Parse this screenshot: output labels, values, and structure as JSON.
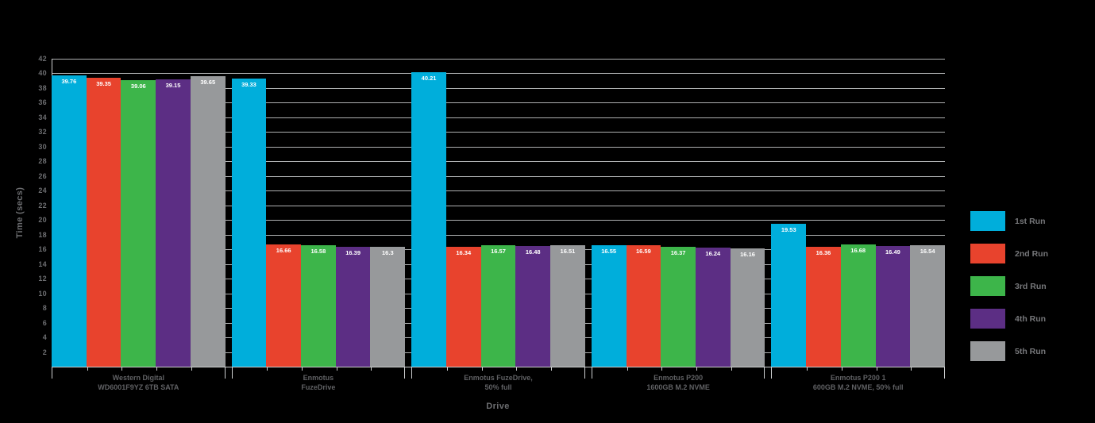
{
  "page": {
    "background": "#000000"
  },
  "chart_data": {
    "type": "bar",
    "title": "",
    "xlabel": "Drive",
    "ylabel": "Time (secs)",
    "ylim": [
      0,
      42
    ],
    "ytick_step": 2,
    "grid": true,
    "legend_position": "right",
    "categories": [
      [
        "Western Digital",
        "WD6001F9YZ 6TB SATA"
      ],
      [
        "Enmotus",
        "FuzeDrive"
      ],
      [
        "Enmotus FuzeDrive,",
        "50% full"
      ],
      [
        "Enmotus P200",
        "1600GB M.2 NVME"
      ],
      [
        "Enmotus P200 1",
        "600GB M.2 NVME, 50% full"
      ]
    ],
    "series": [
      {
        "name": "1st Run",
        "color": "#00AEDB",
        "values": [
          39.76,
          39.33,
          40.21,
          16.55,
          19.53
        ],
        "labels": [
          "39.76",
          "39.33",
          "40.21",
          "16.55",
          "19.53"
        ]
      },
      {
        "name": "2nd Run",
        "color": "#E8432D",
        "values": [
          39.35,
          16.66,
          16.34,
          16.59,
          16.36
        ],
        "labels": [
          "39.35",
          "16.66",
          "16.34",
          "16.59",
          "16.36"
        ]
      },
      {
        "name": "3rd Run",
        "color": "#3DB54A",
        "values": [
          39.06,
          16.58,
          16.57,
          16.37,
          16.68
        ],
        "labels": [
          "39.06",
          "16.58",
          "16.57",
          "16.37",
          "16.68"
        ]
      },
      {
        "name": "4th Run",
        "color": "#5C2E84",
        "values": [
          39.15,
          16.39,
          16.48,
          16.24,
          16.49
        ],
        "labels": [
          "39.15",
          "16.39",
          "16.48",
          "16.24",
          "16.49"
        ]
      },
      {
        "name": "5th Run",
        "color": "#97999B",
        "values": [
          39.65,
          16.3,
          16.51,
          16.16,
          16.54
        ],
        "labels": [
          "39.65",
          "16.3",
          "16.51",
          "16.16",
          "16.54"
        ]
      }
    ],
    "colors": {
      "gridline": "#CDCFD0",
      "axis_text": "#6D6E71",
      "category_text": "#606164",
      "legend_text": "#76777A",
      "value_label_text": "#FFFFFF"
    }
  }
}
